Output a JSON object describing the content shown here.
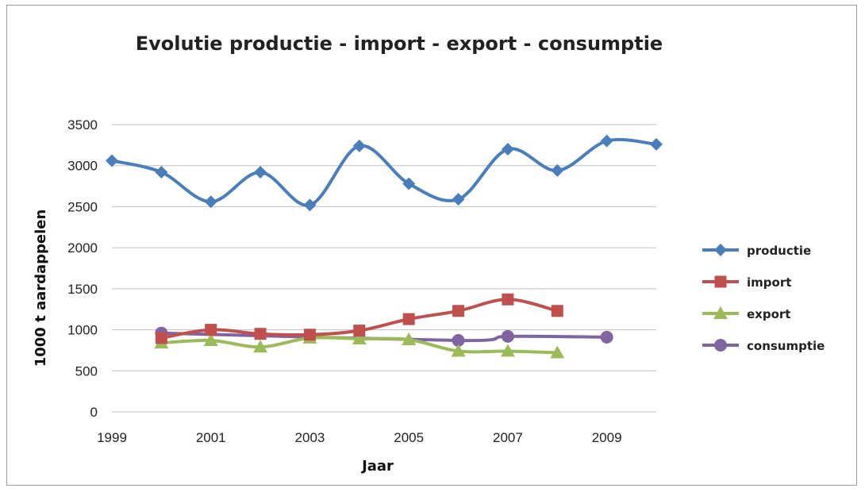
{
  "chart_data": {
    "type": "line",
    "title": "Evolutie productie - import - export - consumptie",
    "xlabel": "Jaar",
    "ylabel": "1000 t aardappelen",
    "xlim": [
      1999,
      2010
    ],
    "ylim": [
      0,
      3500
    ],
    "x_ticks": [
      1999,
      2001,
      2003,
      2005,
      2007,
      2009
    ],
    "y_ticks": [
      0,
      500,
      1000,
      1500,
      2000,
      2500,
      3000,
      3500
    ],
    "grid": true,
    "smooth": true,
    "legend_position": "right",
    "series": [
      {
        "name": "productie",
        "color": "#4a7ebb",
        "marker": "diamond",
        "x": [
          1999,
          2000,
          2001,
          2002,
          2003,
          2004,
          2005,
          2006,
          2007,
          2008,
          2009,
          2010
        ],
        "values": [
          3060,
          2920,
          2560,
          2920,
          2520,
          3240,
          2780,
          2590,
          3200,
          2940,
          3300,
          3260
        ]
      },
      {
        "name": "import",
        "color": "#c0504d",
        "marker": "square",
        "x": [
          2000,
          2001,
          2002,
          2003,
          2004,
          2005,
          2006,
          2007,
          2008
        ],
        "values": [
          900,
          1000,
          950,
          940,
          990,
          1130,
          1230,
          1370,
          1230
        ]
      },
      {
        "name": "export",
        "color": "#9bbb59",
        "marker": "triangle",
        "x": [
          2000,
          2001,
          2002,
          2003,
          2004,
          2005,
          2006,
          2007,
          2008
        ],
        "values": [
          840,
          870,
          790,
          900,
          890,
          880,
          740,
          740,
          720
        ]
      },
      {
        "name": "consumptie",
        "color": "#8064a2",
        "marker": "circle",
        "x": [
          2000,
          2006,
          2007,
          2009
        ],
        "values": [
          960,
          870,
          920,
          910
        ]
      }
    ]
  }
}
